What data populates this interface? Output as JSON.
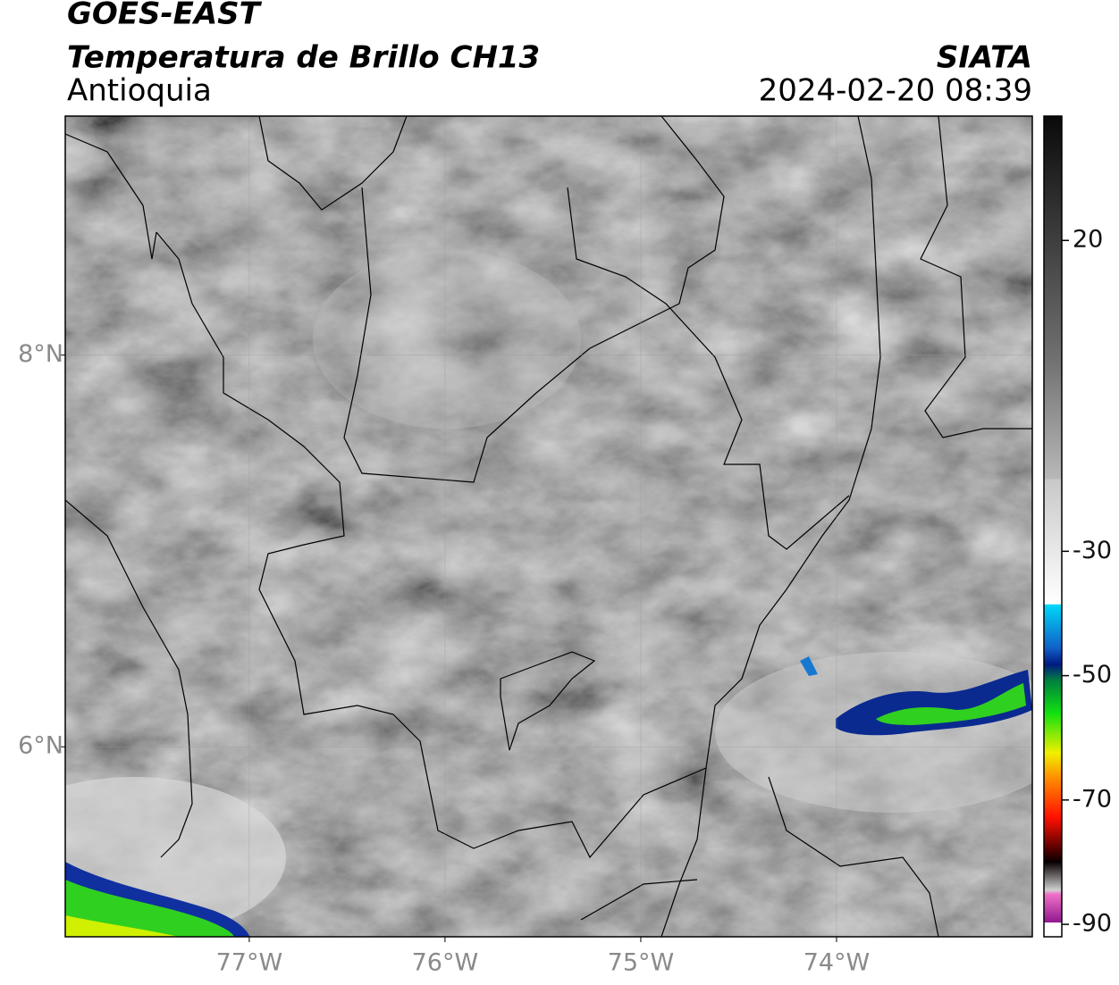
{
  "header": {
    "title": "GOES-EAST",
    "subtitle": "Temperatura de Brillo CH13",
    "region": "Antioquia",
    "source": "SIATA",
    "datetime": "2024-02-20 08:39"
  },
  "map": {
    "xlim": [
      -77.94,
      -73.0
    ],
    "ylim": [
      5.03,
      9.22
    ],
    "xticks": [
      {
        "value": -77,
        "label": "77°W"
      },
      {
        "value": -76,
        "label": "76°W"
      },
      {
        "value": -75,
        "label": "75°W"
      },
      {
        "value": -74,
        "label": "74°W"
      }
    ],
    "yticks": [
      {
        "value": 8,
        "label": "8°N"
      },
      {
        "value": 6,
        "label": "6°N"
      }
    ],
    "grid": true
  },
  "colorbar": {
    "lim": [
      -92,
      40
    ],
    "ticks": [
      20,
      -30,
      -50,
      -70,
      -90
    ]
  }
}
